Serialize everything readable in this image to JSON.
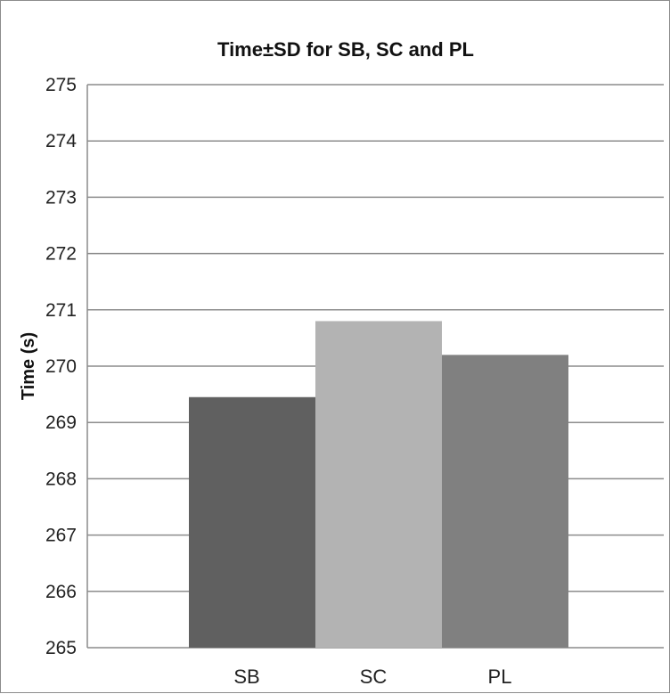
{
  "chart_data": {
    "type": "bar",
    "title": "Time±SD for SB, SC and PL",
    "ylabel": "Time (s)",
    "xlabel": "",
    "categories": [
      "SB",
      "SC",
      "PL"
    ],
    "values": [
      269.45,
      270.8,
      270.2
    ],
    "colors": [
      "#606060",
      "#b3b3b3",
      "#808080"
    ],
    "ylim": [
      265,
      275
    ],
    "yticks": [
      "265",
      "266",
      "267",
      "268",
      "269",
      "270",
      "271",
      "272",
      "273",
      "274",
      "275"
    ],
    "grid": true,
    "legend": "none"
  }
}
